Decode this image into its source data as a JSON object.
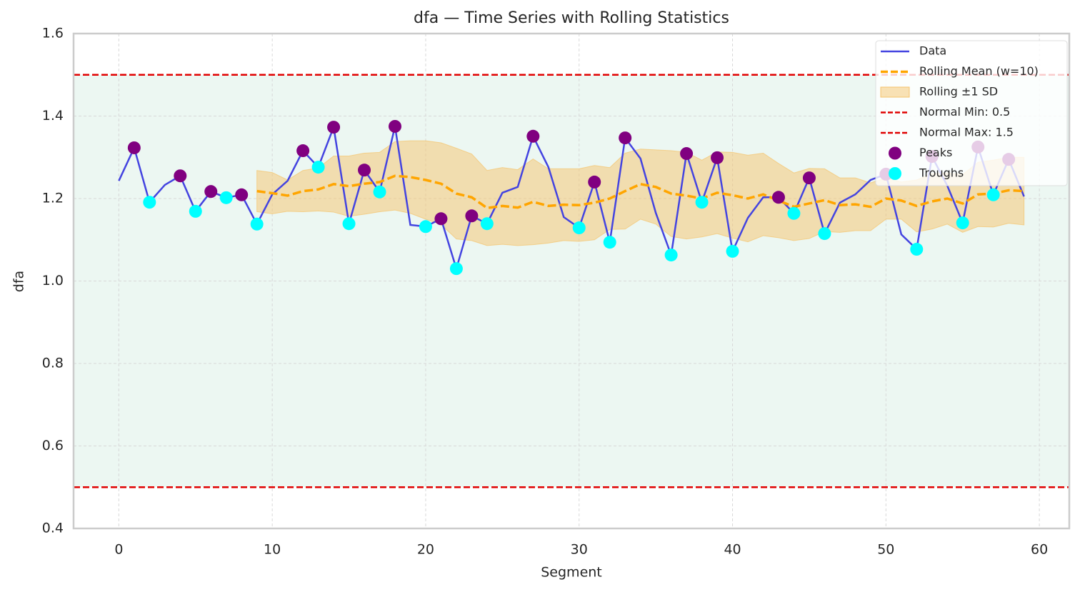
{
  "chart_data": {
    "type": "line",
    "title": "dfa — Time Series with Rolling Statistics",
    "xlabel": "Segment",
    "ylabel": "dfa",
    "x": [
      0,
      1,
      2,
      3,
      4,
      5,
      6,
      7,
      8,
      9,
      10,
      11,
      12,
      13,
      14,
      15,
      16,
      17,
      18,
      19,
      20,
      21,
      22,
      23,
      24,
      25,
      26,
      27,
      28,
      29,
      30,
      31,
      32,
      33,
      34,
      35,
      36,
      37,
      38,
      39,
      40,
      41,
      42,
      43,
      44,
      45,
      46,
      47,
      48,
      49,
      50,
      51,
      52,
      53,
      54,
      55,
      56,
      57,
      58,
      59
    ],
    "series": [
      {
        "name": "Data",
        "color": "#4444e0",
        "values": [
          1.243,
          1.323,
          1.191,
          1.233,
          1.255,
          1.169,
          1.217,
          1.202,
          1.209,
          1.138,
          1.21,
          1.243,
          1.316,
          1.276,
          1.373,
          1.139,
          1.269,
          1.216,
          1.375,
          1.136,
          1.132,
          1.151,
          1.03,
          1.158,
          1.139,
          1.214,
          1.228,
          1.351,
          1.276,
          1.155,
          1.129,
          1.24,
          1.094,
          1.347,
          1.297,
          1.165,
          1.063,
          1.309,
          1.191,
          1.299,
          1.072,
          1.153,
          1.203,
          1.203,
          1.164,
          1.25,
          1.115,
          1.19,
          1.21,
          1.245,
          1.259,
          1.113,
          1.077,
          1.302,
          1.231,
          1.141,
          1.325,
          1.209,
          1.295,
          1.205
        ]
      },
      {
        "name": "Rolling Mean (w=10)",
        "color": "#ffa500",
        "values": [
          null,
          null,
          null,
          null,
          null,
          null,
          null,
          null,
          null,
          1.218,
          1.213,
          1.207,
          1.218,
          1.222,
          1.235,
          1.23,
          1.236,
          1.24,
          1.255,
          1.252,
          1.245,
          1.236,
          1.212,
          1.203,
          1.177,
          1.182,
          1.178,
          1.192,
          1.182,
          1.185,
          1.184,
          1.19,
          1.2,
          1.218,
          1.235,
          1.228,
          1.212,
          1.207,
          1.2,
          1.214,
          1.208,
          1.2,
          1.21,
          1.195,
          1.18,
          1.188,
          1.196,
          1.184,
          1.186,
          1.18,
          1.2,
          1.195,
          1.182,
          1.193,
          1.2,
          1.188,
          1.21,
          1.212,
          1.22,
          1.218
        ]
      }
    ],
    "band": {
      "name": "Rolling ±1 SD",
      "color": "#f5c36b",
      "sd": [
        null,
        null,
        null,
        null,
        null,
        null,
        null,
        null,
        null,
        0.05,
        0.05,
        0.038,
        0.05,
        0.052,
        0.068,
        0.073,
        0.074,
        0.072,
        0.083,
        0.088,
        0.095,
        0.099,
        0.11,
        0.105,
        0.091,
        0.093,
        0.092,
        0.104,
        0.09,
        0.087,
        0.088,
        0.09,
        0.075,
        0.092,
        0.085,
        0.09,
        0.104,
        0.105,
        0.093,
        0.099,
        0.104,
        0.105,
        0.1,
        0.09,
        0.082,
        0.085,
        0.076,
        0.066,
        0.064,
        0.058,
        0.05,
        0.045,
        0.063,
        0.067,
        0.062,
        0.07,
        0.078,
        0.081,
        0.08,
        0.082
      ]
    },
    "hlines": [
      {
        "name": "Normal Min: 0.5",
        "value": 0.5,
        "color": "#e00000"
      },
      {
        "name": "Normal Max: 1.5",
        "value": 1.5,
        "color": "#e00000"
      }
    ],
    "markers": [
      {
        "name": "Peaks",
        "color": "#800080",
        "x": [
          1,
          4,
          6,
          8,
          12,
          14,
          16,
          18,
          21,
          23,
          27,
          31,
          33,
          37,
          39,
          43,
          45,
          50,
          53,
          56,
          58
        ]
      },
      {
        "name": "Troughs",
        "color": "#00ffff",
        "x": [
          2,
          5,
          7,
          9,
          13,
          15,
          17,
          20,
          22,
          24,
          30,
          32,
          36,
          38,
          40,
          44,
          46,
          52,
          55,
          57
        ]
      }
    ],
    "xlim": [
      -2.95,
      61.95
    ],
    "ylim": [
      0.4,
      1.6
    ],
    "xticks": [
      0,
      10,
      20,
      30,
      40,
      50,
      60
    ],
    "yticks": [
      0.4,
      0.6,
      0.8,
      {
        "value": 1,
        "label": "1.0"
      },
      1.2,
      1.4,
      1.6
    ],
    "grid": true,
    "legend": "upper right"
  }
}
